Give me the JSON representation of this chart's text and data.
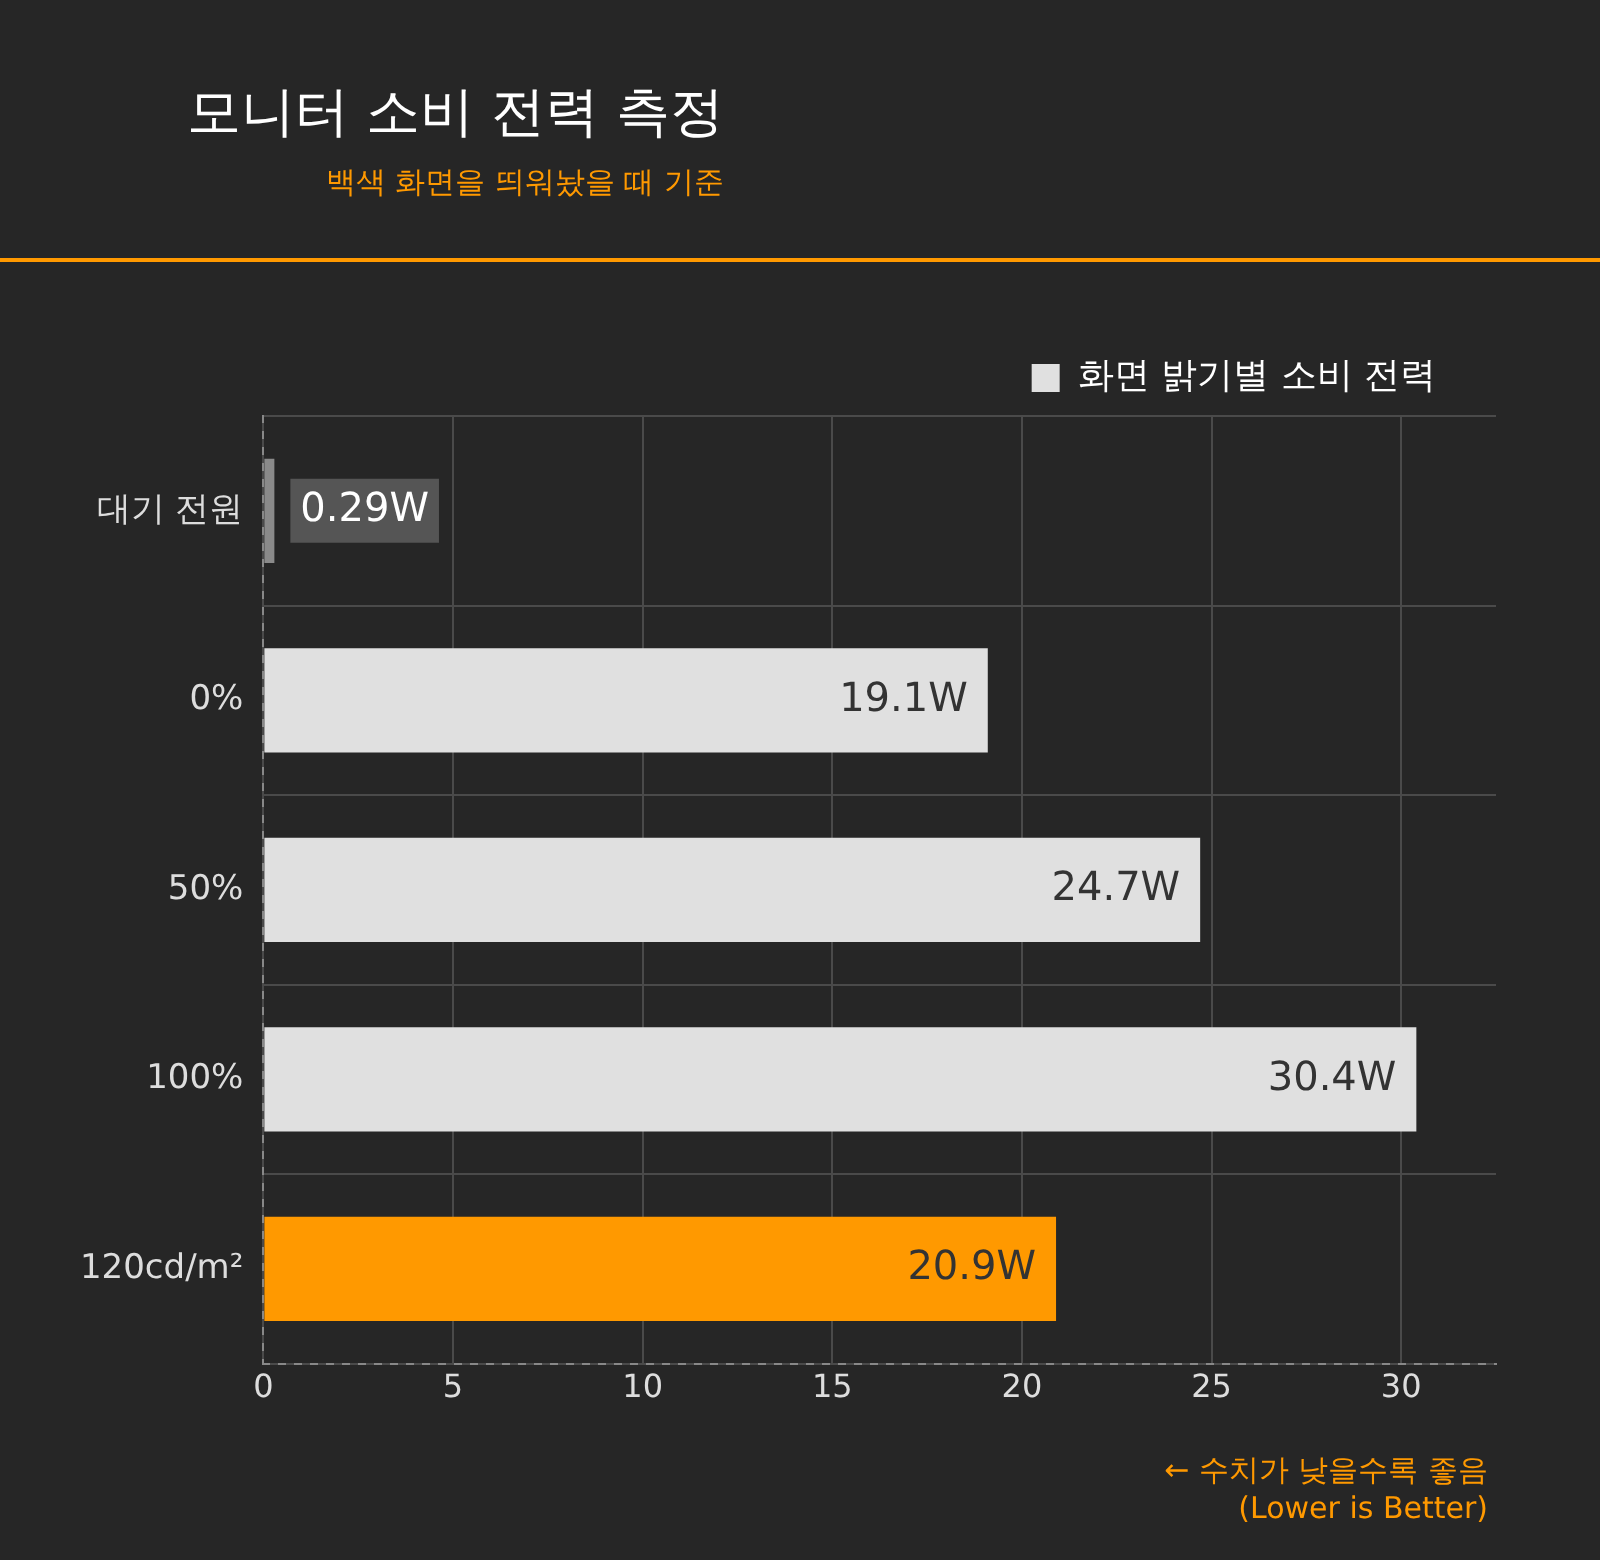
{
  "chart_data": {
    "type": "bar",
    "orientation": "horizontal",
    "title": "모니터 소비 전력 측정",
    "subtitle": "백색 화면을 띄워놨을 때 기준",
    "categories": [
      "대기 전원",
      "0%",
      "50%",
      "100%",
      "120cd/m²"
    ],
    "series": [
      {
        "name": "화면 밝기별 소비 전력",
        "color": "#e0e0e0",
        "values": [
          0.29,
          19.1,
          24.7,
          30.4,
          20.9
        ],
        "colors": [
          "#8a8a8a",
          "#e0e0e0",
          "#e0e0e0",
          "#e0e0e0",
          "#ff9900"
        ],
        "value_labels": [
          "0.29W",
          "19.1W",
          "24.7W",
          "30.4W",
          "20.9W"
        ]
      }
    ],
    "xlim": [
      0,
      32.5
    ],
    "xticks": [
      0,
      5,
      10,
      15,
      20,
      25,
      30
    ],
    "grid": true,
    "legend": "top right",
    "annotations": [
      "← 수치가 낮을수록 좋음",
      "(Lower is Better)"
    ]
  }
}
